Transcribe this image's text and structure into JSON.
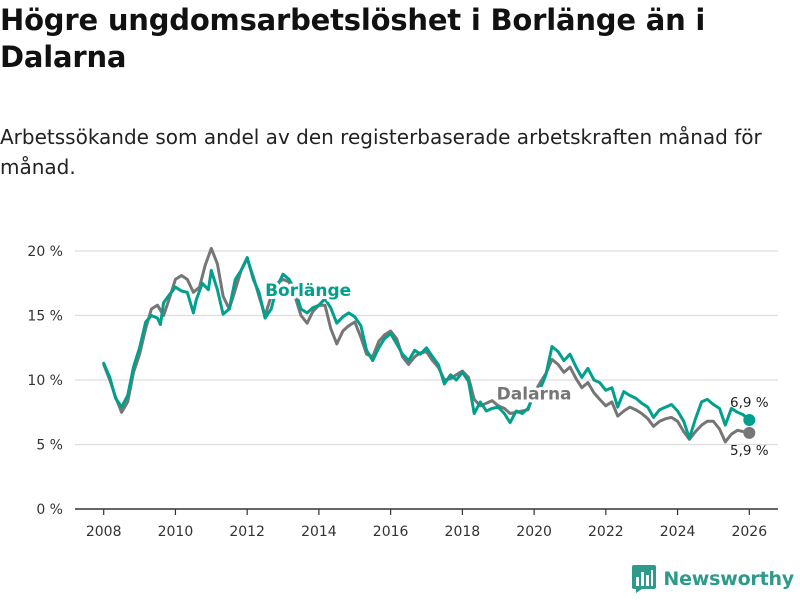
{
  "header": {
    "title": "Högre ungdomsarbetslöshet i Borlänge än i Dalarna",
    "subtitle": "Arbetssökande som andel av den registerbaserade arbetskraften månad för månad."
  },
  "brand": {
    "name": "Newsworthy",
    "logo_icon": "bar-chart-logo-icon",
    "color": "#2e9a8c"
  },
  "colors": {
    "borlange": "#00a08c",
    "dalarna": "#767676",
    "grid": "#dddddd",
    "axis": "#333333"
  },
  "chart_data": {
    "type": "line",
    "title": "Högre ungdomsarbetslöshet i Borlänge än i Dalarna",
    "subtitle": "Arbetssökande som andel av den registerbaserade arbetskraften månad för månad.",
    "xlabel": "",
    "ylabel": "",
    "xlim": [
      2007.2,
      2026.8
    ],
    "ylim": [
      0,
      20
    ],
    "x_ticks": [
      2008,
      2010,
      2012,
      2014,
      2016,
      2018,
      2020,
      2022,
      2024,
      2026
    ],
    "y_ticks": [
      0,
      5,
      10,
      15,
      20
    ],
    "y_tick_labels": [
      "0 %",
      "5 %",
      "10 %",
      "15 %",
      "20 %"
    ],
    "grid": "horizontal",
    "legend": "inline labels on lines",
    "series": [
      {
        "name": "Borlänge",
        "label_at": [
          2013.7,
          16.5
        ],
        "end_value_label": "6,9 %",
        "points": [
          [
            2008.0,
            11.3
          ],
          [
            2008.17,
            10.2
          ],
          [
            2008.33,
            8.6
          ],
          [
            2008.5,
            7.9
          ],
          [
            2008.67,
            8.8
          ],
          [
            2008.83,
            11.0
          ],
          [
            2009.0,
            12.5
          ],
          [
            2009.17,
            14.5
          ],
          [
            2009.33,
            15.0
          ],
          [
            2009.5,
            14.8
          ],
          [
            2009.58,
            14.3
          ],
          [
            2009.67,
            16.0
          ],
          [
            2009.83,
            16.6
          ],
          [
            2010.0,
            17.2
          ],
          [
            2010.17,
            16.9
          ],
          [
            2010.33,
            16.8
          ],
          [
            2010.5,
            15.2
          ],
          [
            2010.58,
            16.2
          ],
          [
            2010.75,
            17.5
          ],
          [
            2010.92,
            17.0
          ],
          [
            2011.0,
            18.5
          ],
          [
            2011.17,
            17.0
          ],
          [
            2011.33,
            15.1
          ],
          [
            2011.5,
            15.5
          ],
          [
            2011.67,
            17.8
          ],
          [
            2011.83,
            18.5
          ],
          [
            2012.0,
            19.5
          ],
          [
            2012.17,
            17.8
          ],
          [
            2012.33,
            16.8
          ],
          [
            2012.5,
            14.8
          ],
          [
            2012.67,
            15.5
          ],
          [
            2012.83,
            17.2
          ],
          [
            2013.0,
            18.2
          ],
          [
            2013.17,
            17.8
          ],
          [
            2013.33,
            17.0
          ],
          [
            2013.5,
            15.5
          ],
          [
            2013.67,
            15.2
          ],
          [
            2013.83,
            15.6
          ],
          [
            2014.0,
            15.8
          ],
          [
            2014.17,
            16.3
          ],
          [
            2014.33,
            15.6
          ],
          [
            2014.5,
            14.4
          ],
          [
            2014.67,
            14.9
          ],
          [
            2014.83,
            15.2
          ],
          [
            2015.0,
            14.9
          ],
          [
            2015.17,
            14.2
          ],
          [
            2015.33,
            12.3
          ],
          [
            2015.5,
            11.5
          ],
          [
            2015.67,
            12.5
          ],
          [
            2015.83,
            13.2
          ],
          [
            2016.0,
            13.6
          ],
          [
            2016.17,
            12.8
          ],
          [
            2016.33,
            12.0
          ],
          [
            2016.5,
            11.5
          ],
          [
            2016.67,
            12.3
          ],
          [
            2016.83,
            12.0
          ],
          [
            2017.0,
            12.5
          ],
          [
            2017.17,
            11.8
          ],
          [
            2017.33,
            11.2
          ],
          [
            2017.5,
            9.7
          ],
          [
            2017.67,
            10.4
          ],
          [
            2017.83,
            10.0
          ],
          [
            2018.0,
            10.6
          ],
          [
            2018.17,
            9.9
          ],
          [
            2018.33,
            7.4
          ],
          [
            2018.5,
            8.3
          ],
          [
            2018.67,
            7.6
          ],
          [
            2018.83,
            7.8
          ],
          [
            2019.0,
            7.9
          ],
          [
            2019.17,
            7.4
          ],
          [
            2019.33,
            6.7
          ],
          [
            2019.5,
            7.6
          ],
          [
            2019.67,
            7.4
          ],
          [
            2019.83,
            7.8
          ],
          [
            2020.0,
            8.9
          ],
          [
            2020.17,
            9.3
          ],
          [
            2020.33,
            10.4
          ],
          [
            2020.5,
            12.6
          ],
          [
            2020.67,
            12.2
          ],
          [
            2020.83,
            11.5
          ],
          [
            2021.0,
            12.0
          ],
          [
            2021.17,
            11.0
          ],
          [
            2021.33,
            10.2
          ],
          [
            2021.5,
            10.9
          ],
          [
            2021.67,
            10.0
          ],
          [
            2021.83,
            9.8
          ],
          [
            2022.0,
            9.2
          ],
          [
            2022.17,
            9.4
          ],
          [
            2022.33,
            7.9
          ],
          [
            2022.5,
            9.1
          ],
          [
            2022.67,
            8.8
          ],
          [
            2022.83,
            8.6
          ],
          [
            2023.0,
            8.2
          ],
          [
            2023.17,
            7.9
          ],
          [
            2023.33,
            7.1
          ],
          [
            2023.5,
            7.7
          ],
          [
            2023.67,
            7.9
          ],
          [
            2023.83,
            8.1
          ],
          [
            2024.0,
            7.6
          ],
          [
            2024.17,
            6.8
          ],
          [
            2024.33,
            5.5
          ],
          [
            2024.5,
            7.0
          ],
          [
            2024.67,
            8.3
          ],
          [
            2024.83,
            8.5
          ],
          [
            2025.0,
            8.1
          ],
          [
            2025.17,
            7.8
          ],
          [
            2025.33,
            6.5
          ],
          [
            2025.5,
            7.8
          ],
          [
            2025.67,
            7.5
          ],
          [
            2025.83,
            7.3
          ],
          [
            2026.0,
            6.9
          ]
        ]
      },
      {
        "name": "Dalarna",
        "label_at": [
          2020.0,
          8.5
        ],
        "end_value_label": "5,9 %",
        "points": [
          [
            2008.0,
            11.2
          ],
          [
            2008.17,
            10.0
          ],
          [
            2008.33,
            8.7
          ],
          [
            2008.5,
            7.5
          ],
          [
            2008.67,
            8.3
          ],
          [
            2008.83,
            10.6
          ],
          [
            2009.0,
            12.0
          ],
          [
            2009.17,
            14.0
          ],
          [
            2009.33,
            15.5
          ],
          [
            2009.5,
            15.8
          ],
          [
            2009.67,
            15.0
          ],
          [
            2009.83,
            16.3
          ],
          [
            2010.0,
            17.8
          ],
          [
            2010.17,
            18.1
          ],
          [
            2010.33,
            17.8
          ],
          [
            2010.5,
            16.8
          ],
          [
            2010.67,
            17.2
          ],
          [
            2010.83,
            18.9
          ],
          [
            2011.0,
            20.2
          ],
          [
            2011.17,
            19.0
          ],
          [
            2011.33,
            16.5
          ],
          [
            2011.5,
            15.5
          ],
          [
            2011.67,
            17.0
          ],
          [
            2011.83,
            18.5
          ],
          [
            2012.0,
            19.4
          ],
          [
            2012.17,
            18.0
          ],
          [
            2012.33,
            16.5
          ],
          [
            2012.5,
            15.0
          ],
          [
            2012.67,
            16.5
          ],
          [
            2012.83,
            17.5
          ],
          [
            2013.0,
            17.8
          ],
          [
            2013.17,
            17.6
          ],
          [
            2013.33,
            16.5
          ],
          [
            2013.5,
            15.0
          ],
          [
            2013.67,
            14.4
          ],
          [
            2013.83,
            15.3
          ],
          [
            2014.0,
            15.8
          ],
          [
            2014.17,
            15.8
          ],
          [
            2014.33,
            14.0
          ],
          [
            2014.5,
            12.8
          ],
          [
            2014.67,
            13.8
          ],
          [
            2014.83,
            14.2
          ],
          [
            2015.0,
            14.5
          ],
          [
            2015.17,
            13.3
          ],
          [
            2015.33,
            12.0
          ],
          [
            2015.5,
            11.8
          ],
          [
            2015.67,
            13.0
          ],
          [
            2015.83,
            13.5
          ],
          [
            2016.0,
            13.8
          ],
          [
            2016.17,
            13.2
          ],
          [
            2016.33,
            11.8
          ],
          [
            2016.5,
            11.2
          ],
          [
            2016.67,
            11.8
          ],
          [
            2016.83,
            12.1
          ],
          [
            2017.0,
            12.2
          ],
          [
            2017.17,
            11.5
          ],
          [
            2017.33,
            11.0
          ],
          [
            2017.5,
            10.0
          ],
          [
            2017.67,
            10.1
          ],
          [
            2017.83,
            10.4
          ],
          [
            2018.0,
            10.7
          ],
          [
            2018.17,
            10.2
          ],
          [
            2018.33,
            8.5
          ],
          [
            2018.5,
            8.0
          ],
          [
            2018.67,
            8.2
          ],
          [
            2018.83,
            8.4
          ],
          [
            2019.0,
            8.0
          ],
          [
            2019.17,
            7.8
          ],
          [
            2019.33,
            7.4
          ],
          [
            2019.5,
            7.5
          ],
          [
            2019.67,
            7.6
          ],
          [
            2019.83,
            7.7
          ],
          [
            2020.0,
            9.0
          ],
          [
            2020.17,
            9.8
          ],
          [
            2020.33,
            10.5
          ],
          [
            2020.5,
            11.6
          ],
          [
            2020.67,
            11.2
          ],
          [
            2020.83,
            10.6
          ],
          [
            2021.0,
            11.0
          ],
          [
            2021.17,
            10.1
          ],
          [
            2021.33,
            9.4
          ],
          [
            2021.5,
            9.8
          ],
          [
            2021.67,
            9.0
          ],
          [
            2021.83,
            8.5
          ],
          [
            2022.0,
            8.0
          ],
          [
            2022.17,
            8.3
          ],
          [
            2022.33,
            7.2
          ],
          [
            2022.5,
            7.6
          ],
          [
            2022.67,
            7.9
          ],
          [
            2022.83,
            7.7
          ],
          [
            2023.0,
            7.4
          ],
          [
            2023.17,
            7.0
          ],
          [
            2023.33,
            6.4
          ],
          [
            2023.5,
            6.8
          ],
          [
            2023.67,
            7.0
          ],
          [
            2023.83,
            7.1
          ],
          [
            2024.0,
            6.8
          ],
          [
            2024.17,
            6.0
          ],
          [
            2024.33,
            5.4
          ],
          [
            2024.5,
            6.0
          ],
          [
            2024.67,
            6.5
          ],
          [
            2024.83,
            6.8
          ],
          [
            2025.0,
            6.8
          ],
          [
            2025.17,
            6.2
          ],
          [
            2025.33,
            5.2
          ],
          [
            2025.5,
            5.8
          ],
          [
            2025.67,
            6.1
          ],
          [
            2025.83,
            6.0
          ],
          [
            2026.0,
            5.9
          ]
        ]
      }
    ]
  }
}
